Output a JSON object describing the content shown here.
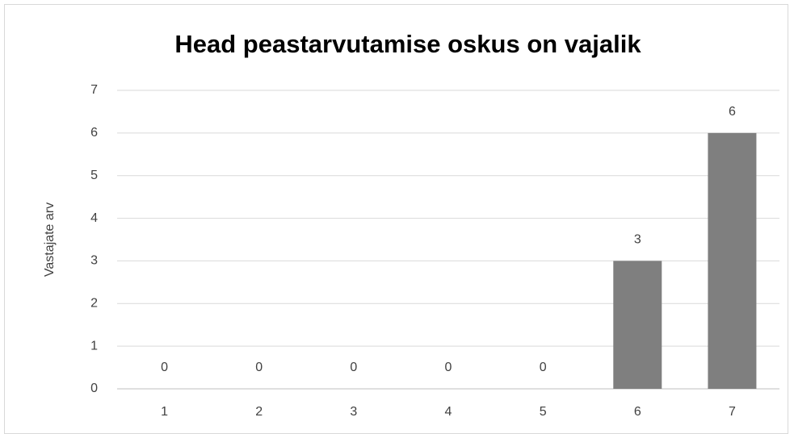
{
  "chart_data": {
    "type": "bar",
    "title": "Head peastarvutamise oskus on vajalik",
    "y_label": "Vastajate arv",
    "categories": [
      "1",
      "2",
      "3",
      "4",
      "5",
      "6",
      "7"
    ],
    "values": [
      0,
      0,
      0,
      0,
      0,
      3,
      6
    ],
    "color": "#7f7f7f",
    "ylim": [
      0,
      7
    ],
    "yticks": [
      0,
      1,
      2,
      3,
      4,
      5,
      6,
      7
    ],
    "grid": true
  }
}
